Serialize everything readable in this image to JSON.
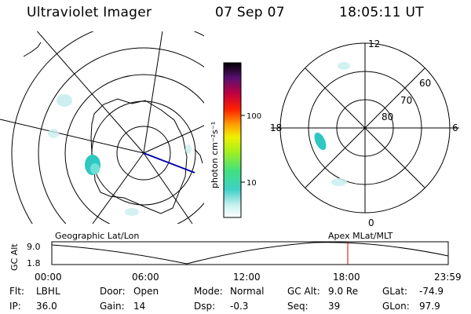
{
  "header": {
    "title": "Ultraviolet Imager",
    "date": "07 Sep 07",
    "time": "18:05:11 UT"
  },
  "geo_map": {
    "label": "Geographic Lat/Lon"
  },
  "apex_map": {
    "label": "Apex MLat/MLT",
    "mlt_labels": {
      "top": "12",
      "left": "18",
      "right": "6",
      "bottom": "0"
    },
    "lat_labels": [
      "60",
      "70",
      "80"
    ]
  },
  "colorbar": {
    "unit": "photon cm⁻²s⁻¹",
    "ticks": [
      "100",
      "10"
    ]
  },
  "timeline": {
    "ylabel": "GC Alt",
    "y_ticks": [
      "9.0",
      "1.8"
    ],
    "x_ticks": [
      "00:00",
      "06:00",
      "12:00",
      "18:00",
      "23:59"
    ],
    "marker_color": "#e00000"
  },
  "info": {
    "row1": [
      {
        "key": "Flt:",
        "value": "LBHL"
      },
      {
        "key": "Door:",
        "value": "Open"
      },
      {
        "key": "Mode:",
        "value": "Normal"
      },
      {
        "key": "GC Alt:",
        "value": "9.0 Re"
      },
      {
        "key": "GLat:",
        "value": "-74.9"
      }
    ],
    "row2": [
      {
        "key": "IP:",
        "value": "36.0"
      },
      {
        "key": "Gain:",
        "value": "14"
      },
      {
        "key": "Dsp:",
        "value": "-0.3"
      },
      {
        "key": "Seq:",
        "value": "39"
      },
      {
        "key": "GLon:",
        "value": "97.9"
      }
    ]
  }
}
